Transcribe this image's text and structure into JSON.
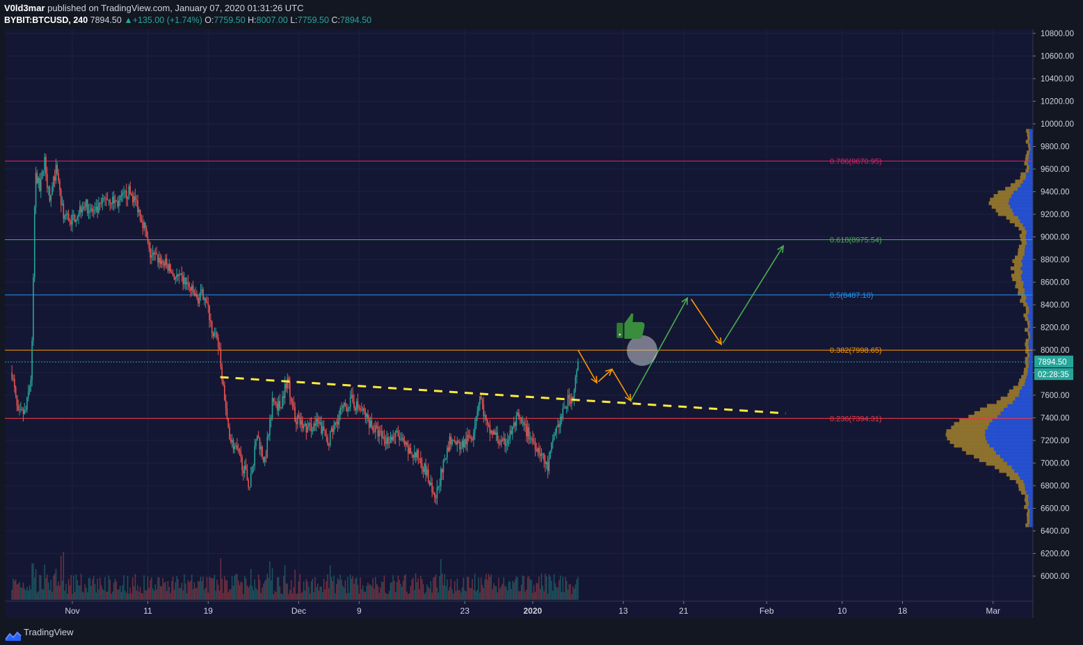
{
  "header": {
    "author": "V0ld3mar",
    "published_text": "published on TradingView.com, January 07, 2020 01:31:26 UTC",
    "symbol": "BYBIT:BTCUSD",
    "interval": "240",
    "last": "7894.50",
    "change": "▲+135.00 (+1.74%)",
    "o_label": "O:",
    "o": "7759.50",
    "h_label": "H:",
    "h": "8007.00",
    "l_label": "L:",
    "l": "7759.50",
    "c_label": "C:",
    "c": "7894.50"
  },
  "footer": {
    "brand": "TradingView"
  },
  "colors": {
    "background": "#131722",
    "up": "#26a69a",
    "down": "#ef5350",
    "fib_786": "#e91e63",
    "fib_618": "#4caf50",
    "fib_5": "#2196f3",
    "fib_382": "#ff9800",
    "fib_236": "#f23645",
    "trendline": "#ffeb3b",
    "arrow_orange": "#ff9800",
    "arrow_green": "#4caf50",
    "vp_up": "#2962ff",
    "vp_down": "#a1802d"
  },
  "chart_data": {
    "type": "candlestick",
    "y_axis": {
      "range": [
        5850,
        10850
      ],
      "ticks": [
        "10800.00",
        "10600.00",
        "10400.00",
        "10200.00",
        "10000.00",
        "9800.00",
        "9600.00",
        "9400.00",
        "9200.00",
        "9000.00",
        "8800.00",
        "8600.00",
        "8400.00",
        "8200.00",
        "8000.00",
        "7800.00",
        "7600.00",
        "7400.00",
        "7200.00",
        "7000.00",
        "6800.00",
        "6600.00",
        "6400.00",
        "6200.00",
        "6000.00"
      ]
    },
    "x_axis": {
      "ticks": [
        "Nov",
        "11",
        "19",
        "Dec",
        "9",
        "23",
        "2020",
        "13",
        "21",
        "Feb",
        "10",
        "18",
        "Mar"
      ],
      "tick_days": [
        0,
        10,
        18,
        30,
        38,
        52,
        61,
        73,
        81,
        92,
        102,
        110,
        122
      ]
    },
    "last_price_label": "7894.50",
    "countdown_label": "02:28:35",
    "last_price": 7894.5,
    "fib_levels": [
      {
        "ratio": 0.786,
        "label": "0.786(9670.95)",
        "value": 9670.95
      },
      {
        "ratio": 0.618,
        "label": "0.618(8975.54)",
        "value": 8975.54
      },
      {
        "ratio": 0.5,
        "label": "0.5(8487.10)",
        "value": 8487.1
      },
      {
        "ratio": 0.382,
        "label": "0.382(7998.65)",
        "value": 7998.65
      },
      {
        "ratio": 0.236,
        "label": "0.236(7394.31)",
        "value": 7394.31
      }
    ],
    "price_path": [
      [
        -8,
        7800
      ],
      [
        -7.2,
        7420
      ],
      [
        -6.2,
        7450
      ],
      [
        -5.4,
        7800
      ],
      [
        -4.9,
        9600
      ],
      [
        -4.3,
        9400
      ],
      [
        -3.7,
        9700
      ],
      [
        -3.0,
        9300
      ],
      [
        -2.2,
        9600
      ],
      [
        -1.2,
        9200
      ],
      [
        0,
        9150
      ],
      [
        1.5,
        9300
      ],
      [
        3,
        9200
      ],
      [
        4.5,
        9350
      ],
      [
        6,
        9300
      ],
      [
        7.5,
        9400
      ],
      [
        8.5,
        9300
      ],
      [
        9.5,
        9100
      ],
      [
        10.2,
        8850
      ],
      [
        11.5,
        8800
      ],
      [
        12.5,
        8750
      ],
      [
        13.5,
        8650
      ],
      [
        15,
        8600
      ],
      [
        16.5,
        8450
      ],
      [
        17.5,
        8500
      ],
      [
        18.5,
        8200
      ],
      [
        19.5,
        8000
      ],
      [
        20.3,
        7450
      ],
      [
        21,
        7200
      ],
      [
        22.2,
        7050
      ],
      [
        23.5,
        6800
      ],
      [
        24.5,
        7250
      ],
      [
        25.5,
        7000
      ],
      [
        26.5,
        7550
      ],
      [
        27.5,
        7500
      ],
      [
        28.5,
        7750
      ],
      [
        29.5,
        7400
      ],
      [
        31,
        7300
      ],
      [
        32.5,
        7350
      ],
      [
        34,
        7200
      ],
      [
        35.5,
        7450
      ],
      [
        37,
        7550
      ],
      [
        38.5,
        7450
      ],
      [
        40,
        7300
      ],
      [
        41.5,
        7200
      ],
      [
        43,
        7250
      ],
      [
        44.5,
        7100
      ],
      [
        46,
        7050
      ],
      [
        47,
        6900
      ],
      [
        48,
        6650
      ],
      [
        49,
        6950
      ],
      [
        50,
        7200
      ],
      [
        51.5,
        7150
      ],
      [
        53,
        7250
      ],
      [
        54,
        7600
      ],
      [
        55,
        7300
      ],
      [
        56,
        7250
      ],
      [
        57,
        7150
      ],
      [
        58,
        7250
      ],
      [
        59,
        7400
      ],
      [
        60,
        7300
      ],
      [
        61,
        7200
      ],
      [
        62,
        7100
      ],
      [
        63,
        6950
      ],
      [
        63.8,
        7250
      ],
      [
        64.8,
        7400
      ],
      [
        65.6,
        7550
      ],
      [
        66.4,
        7600
      ],
      [
        67,
        7894.5
      ]
    ],
    "trendline": [
      [
        19.6,
        7760
      ],
      [
        94.5,
        7440
      ]
    ],
    "orange_arrows": [
      [
        [
          67,
          8000
        ],
        [
          69.5,
          7710
        ]
      ],
      [
        [
          69.7,
          7720
        ],
        [
          71.5,
          7830
        ]
      ],
      [
        [
          71.5,
          7830
        ],
        [
          74,
          7550
        ]
      ],
      [
        [
          82,
          8450
        ],
        [
          86,
          8050
        ]
      ]
    ],
    "green_arrows": [
      [
        [
          74,
          7550
        ],
        [
          81.5,
          8460
        ]
      ],
      [
        [
          86.2,
          8060
        ],
        [
          94.2,
          8920
        ]
      ]
    ],
    "highlight_circle": {
      "day": 75.5,
      "price": 7995
    },
    "thumbs_up": {
      "day": 73.6,
      "price": 8210
    }
  }
}
